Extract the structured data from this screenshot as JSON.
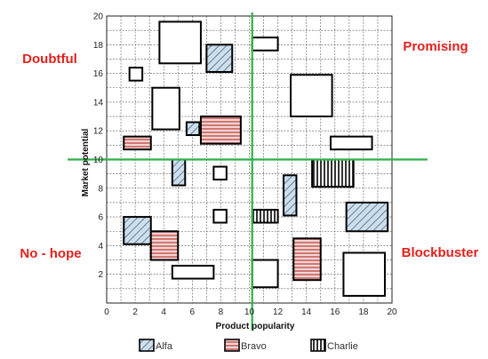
{
  "chart_data": {
    "type": "bubble-rect",
    "xlabel": "Product popularity",
    "ylabel": "Market potential",
    "xlim": [
      0,
      20
    ],
    "ylim": [
      0,
      20
    ],
    "x_ticks": [
      0,
      2,
      4,
      6,
      8,
      10,
      12,
      14,
      16,
      18,
      20
    ],
    "y_ticks": [
      2,
      4,
      6,
      8,
      10,
      12,
      14,
      16,
      18,
      20
    ],
    "grid": true,
    "divider": {
      "x": 10.2,
      "y": 10,
      "color": "#2eb04a"
    },
    "quadrant_labels": [
      {
        "id": "doubtful",
        "text": "Doubtful",
        "position": "top-left"
      },
      {
        "id": "promising",
        "text": "Promising",
        "position": "top-right"
      },
      {
        "id": "no-hope",
        "text": "No - hope",
        "position": "bottom-left"
      },
      {
        "id": "blockbuster",
        "text": "Blockbuster",
        "position": "bottom-right"
      }
    ],
    "series": [
      {
        "name": "Alfa",
        "pattern": "diagonal",
        "color": "#a9c4dc"
      },
      {
        "name": "Bravo",
        "pattern": "horizontal",
        "color": "#d9736d"
      },
      {
        "name": "Charlie",
        "pattern": "vertical",
        "color": "#000000"
      }
    ],
    "products": [
      {
        "x0": 3.7,
        "x1": 6.6,
        "y0": 16.7,
        "y1": 19.6,
        "series": null
      },
      {
        "x0": 7.0,
        "x1": 8.8,
        "y0": 16.1,
        "y1": 18.0,
        "series": "Alfa"
      },
      {
        "x0": 10.2,
        "x1": 12.0,
        "y0": 17.6,
        "y1": 18.5,
        "series": null
      },
      {
        "x0": 1.6,
        "x1": 2.5,
        "y0": 15.5,
        "y1": 16.4,
        "series": null
      },
      {
        "x0": 3.2,
        "x1": 5.1,
        "y0": 12.1,
        "y1": 15.0,
        "series": null
      },
      {
        "x0": 12.9,
        "x1": 15.8,
        "y0": 13.0,
        "y1": 15.9,
        "series": null
      },
      {
        "x0": 5.6,
        "x1": 6.5,
        "y0": 11.7,
        "y1": 12.6,
        "series": "Alfa"
      },
      {
        "x0": 6.6,
        "x1": 9.4,
        "y0": 11.1,
        "y1": 13.0,
        "series": "Bravo"
      },
      {
        "x0": 1.2,
        "x1": 3.1,
        "y0": 10.7,
        "y1": 11.6,
        "series": "Bravo"
      },
      {
        "x0": 15.7,
        "x1": 18.6,
        "y0": 10.7,
        "y1": 11.6,
        "series": null
      },
      {
        "x0": 4.6,
        "x1": 5.5,
        "y0": 8.2,
        "y1": 10.0,
        "series": "Alfa"
      },
      {
        "x0": 7.5,
        "x1": 8.4,
        "y0": 8.6,
        "y1": 9.5,
        "series": null
      },
      {
        "x0": 14.4,
        "x1": 17.3,
        "y0": 8.1,
        "y1": 10.0,
        "series": "Charlie"
      },
      {
        "x0": 12.4,
        "x1": 13.3,
        "y0": 6.1,
        "y1": 8.9,
        "series": "Alfa"
      },
      {
        "x0": 7.5,
        "x1": 8.4,
        "y0": 5.6,
        "y1": 6.5,
        "series": null
      },
      {
        "x0": 10.2,
        "x1": 12.0,
        "y0": 5.6,
        "y1": 6.5,
        "series": "Charlie"
      },
      {
        "x0": 1.2,
        "x1": 3.1,
        "y0": 4.1,
        "y1": 6.0,
        "series": "Alfa"
      },
      {
        "x0": 16.8,
        "x1": 19.7,
        "y0": 5.0,
        "y1": 7.0,
        "series": "Alfa"
      },
      {
        "x0": 3.1,
        "x1": 5.0,
        "y0": 3.0,
        "y1": 5.0,
        "series": "Bravo"
      },
      {
        "x0": 13.1,
        "x1": 15.0,
        "y0": 1.6,
        "y1": 4.5,
        "series": "Bravo"
      },
      {
        "x0": 4.6,
        "x1": 7.5,
        "y0": 1.7,
        "y1": 2.6,
        "series": null
      },
      {
        "x0": 10.2,
        "x1": 12.0,
        "y0": 1.1,
        "y1": 3.0,
        "series": null
      },
      {
        "x0": 16.6,
        "x1": 19.5,
        "y0": 0.5,
        "y1": 3.5,
        "series": null
      }
    ]
  }
}
